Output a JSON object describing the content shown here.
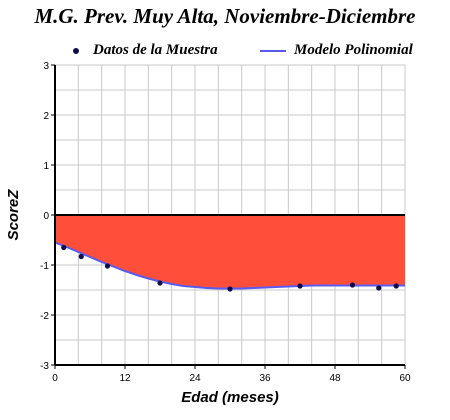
{
  "chart_data": {
    "type": "line",
    "title": "M.G. Prev. Muy Alta, Noviembre-Diciembre",
    "xlabel": "Edad (meses)",
    "ylabel": "ScoreZ",
    "xlim": [
      0,
      60
    ],
    "ylim": [
      -3,
      3
    ],
    "xticks": [
      0,
      12,
      24,
      36,
      48,
      60
    ],
    "yticks": [
      -3,
      -2,
      -1,
      0,
      1,
      2,
      3
    ],
    "grid": true,
    "legend_position": "top",
    "series": [
      {
        "name": "Datos de la Muestra",
        "kind": "scatter",
        "color": "#0d0d4a",
        "x": [
          1.5,
          4.5,
          9,
          18,
          30,
          42,
          51,
          55.5,
          58.5
        ],
        "y": [
          -0.65,
          -0.83,
          -1.02,
          -1.36,
          -1.48,
          -1.42,
          -1.4,
          -1.46,
          -1.42
        ]
      },
      {
        "name": "Modelo Polinomial",
        "kind": "line",
        "color": "#5a5af0",
        "fill_color": "#ff4f3a",
        "x": [
          0,
          2,
          4,
          6,
          8,
          10,
          12,
          14,
          16,
          18,
          20,
          22,
          24,
          26,
          28,
          30,
          32,
          34,
          36,
          38,
          40,
          42,
          44,
          46,
          48,
          50,
          52,
          54,
          56,
          58,
          60
        ],
        "y": [
          -0.55,
          -0.64,
          -0.74,
          -0.84,
          -0.94,
          -1.03,
          -1.12,
          -1.2,
          -1.27,
          -1.33,
          -1.38,
          -1.42,
          -1.44,
          -1.46,
          -1.47,
          -1.47,
          -1.47,
          -1.46,
          -1.45,
          -1.44,
          -1.43,
          -1.42,
          -1.41,
          -1.41,
          -1.41,
          -1.41,
          -1.41,
          -1.41,
          -1.41,
          -1.41,
          -1.41
        ]
      }
    ]
  }
}
